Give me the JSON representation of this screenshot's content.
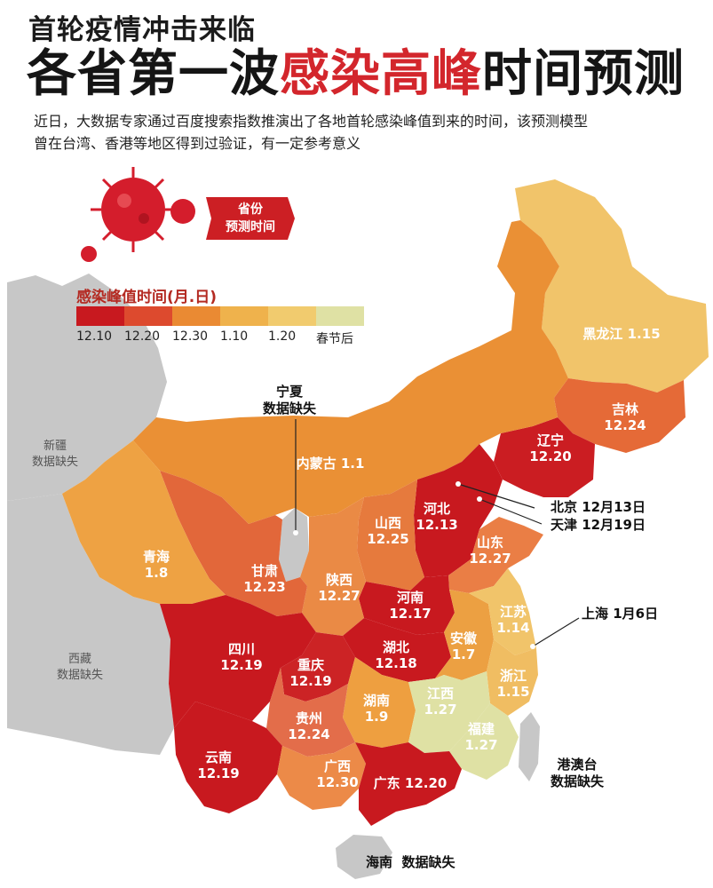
{
  "header": {
    "title_line1": "首轮疫情冲击来临",
    "title_line2_part1": "各省第一波",
    "title_line2_part2": "感染高峰",
    "title_line2_part3": "时间预测",
    "description_line1": "近日，大数据专家通过百度搜索指数推演出了各地首轮感染峰值到来的时间，该预测模型",
    "description_line2": "曾在台湾、香港等地区得到过验证，有一定参考意义"
  },
  "badge": {
    "line1": "省份",
    "line2": "预测时间"
  },
  "legend": {
    "title": "感染峰值时间(月.日)",
    "items": [
      {
        "label": "12.10",
        "color": "#c8191f"
      },
      {
        "label": "12.20",
        "color": "#dd4a2e"
      },
      {
        "label": "12.30",
        "color": "#ea8a33"
      },
      {
        "label": "1.10",
        "color": "#efb24c"
      },
      {
        "label": "1.20",
        "color": "#f1cb6e"
      },
      {
        "label": "春节后",
        "color": "#dfe1a4"
      }
    ]
  },
  "map": {
    "colors": {
      "peak_1210": "#c8191f",
      "peak_1220": "#dd4a2e",
      "peak_1230": "#ea8a33",
      "peak_110": "#efb24c",
      "peak_120": "#f1cb6e",
      "after_new_year": "#dfe1a4",
      "no_data": "#c7c7c7",
      "sea": "#ffffff"
    },
    "provinces": [
      {
        "key": "heilongjiang",
        "name": "黑龙江",
        "date": "1.15",
        "color": "#f1c46a",
        "dark_text": false
      },
      {
        "key": "jilin",
        "name": "吉林",
        "date": "12.24",
        "color": "#e56a37"
      },
      {
        "key": "liaoning",
        "name": "辽宁",
        "date": "12.20",
        "color": "#cb1d22"
      },
      {
        "key": "neimenggu",
        "name": "内蒙古",
        "date": "1.1",
        "color": "#ea9035"
      },
      {
        "key": "hebei",
        "name": "河北",
        "date": "12.13",
        "color": "#c8191f"
      },
      {
        "key": "shanxi",
        "name": "山西",
        "date": "12.25",
        "color": "#e67a3d"
      },
      {
        "key": "shandong",
        "name": "山东",
        "date": "12.27",
        "color": "#ea7e45"
      },
      {
        "key": "henan",
        "name": "河南",
        "date": "12.17",
        "color": "#c8191f"
      },
      {
        "key": "shaanxi",
        "name": "陕西",
        "date": "12.27",
        "color": "#ea8a45"
      },
      {
        "key": "gansu",
        "name": "甘肃",
        "date": "12.23",
        "color": "#e2673a"
      },
      {
        "key": "qinghai",
        "name": "青海",
        "date": "1.8",
        "color": "#eea243"
      },
      {
        "key": "sichuan",
        "name": "四川",
        "date": "12.19",
        "color": "#c8191f"
      },
      {
        "key": "chongqing",
        "name": "重庆",
        "date": "12.19",
        "color": "#cc2325"
      },
      {
        "key": "hubei",
        "name": "湖北",
        "date": "12.18",
        "color": "#c8191f"
      },
      {
        "key": "anhui",
        "name": "安徽",
        "date": "1.7",
        "color": "#eca042"
      },
      {
        "key": "jiangsu",
        "name": "江苏",
        "date": "1.14",
        "color": "#f1c46a"
      },
      {
        "key": "zhejiang",
        "name": "浙江",
        "date": "1.15",
        "color": "#f0bd62"
      },
      {
        "key": "hunan",
        "name": "湖南",
        "date": "1.9",
        "color": "#ee9f40"
      },
      {
        "key": "jiangxi",
        "name": "江西",
        "date": "1.27",
        "color": "#dfe1a4"
      },
      {
        "key": "fujian",
        "name": "福建",
        "date": "1.27",
        "color": "#dfe1a4"
      },
      {
        "key": "guizhou",
        "name": "贵州",
        "date": "12.24",
        "color": "#e36d4a"
      },
      {
        "key": "yunnan",
        "name": "云南",
        "date": "12.19",
        "color": "#c8191f"
      },
      {
        "key": "guangxi",
        "name": "广西",
        "date": "12.30",
        "color": "#ec8a48"
      },
      {
        "key": "guangdong",
        "name": "广东",
        "date": "12.20",
        "color": "#c8191f"
      }
    ],
    "no_data_regions": [
      {
        "key": "xinjiang",
        "name": "新疆",
        "note": "数据缺失"
      },
      {
        "key": "xizang",
        "name": "西藏",
        "note": "数据缺失"
      },
      {
        "key": "ningxia",
        "name": "宁夏",
        "note": "数据缺失"
      },
      {
        "key": "hainan",
        "name": "海南",
        "note": "数据缺失"
      },
      {
        "key": "gangaotai",
        "name": "港澳台",
        "note": "数据缺失"
      }
    ],
    "callouts": {
      "beijing": "北京 12月13日",
      "tianjin": "天津 12月19日",
      "shanghai": "上海 1月6日"
    }
  }
}
